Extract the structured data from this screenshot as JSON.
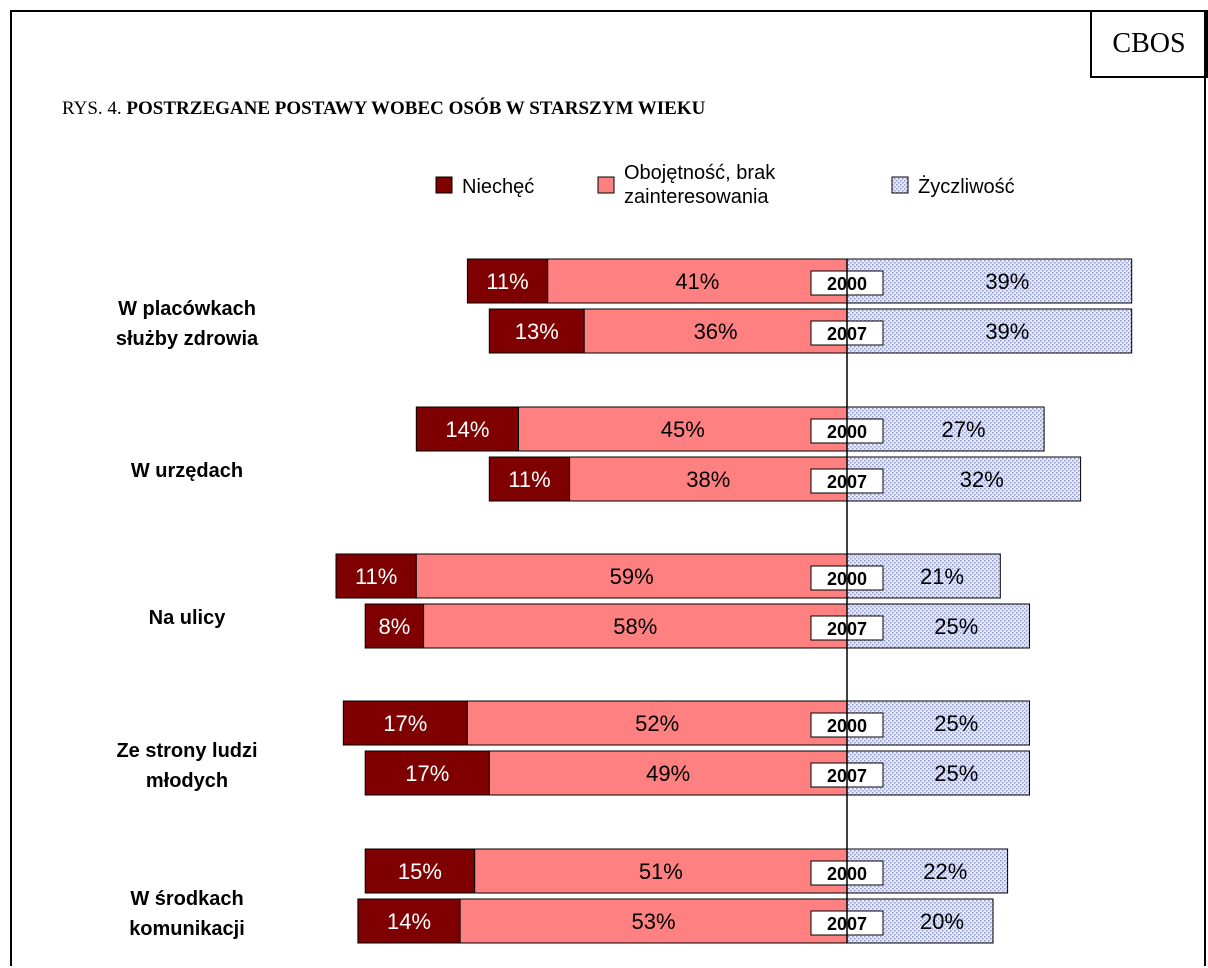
{
  "badge": "CBOS",
  "figure_prefix": "RYS. 4.",
  "figure_title": "POSTRZEGANE POSTAWY WOBEC OSÓB W STARSZYM WIEKU",
  "chart_data": {
    "type": "bar",
    "orientation": "horizontal-diverging",
    "stacked": true,
    "legend": [
      {
        "name": "Niechęć",
        "lines": [
          "Niechęć"
        ],
        "color": "#7f0000",
        "pattern": "solid"
      },
      {
        "name": "Obojętność, brak zainteresowania",
        "lines": [
          "Obojętność, brak",
          "zainteresowania"
        ],
        "color": "#ff8080",
        "pattern": "solid"
      },
      {
        "name": "Życzliwość",
        "lines": [
          "Życzliwość"
        ],
        "color": "#d8dcf0",
        "pattern": "dotted"
      }
    ],
    "legend_position": "top",
    "categories": [
      {
        "label": [
          "W placówkach",
          "służby zdrowia"
        ],
        "rows": [
          {
            "year": "2000",
            "values": [
              11,
              41,
              39
            ]
          },
          {
            "year": "2007",
            "values": [
              13,
              36,
              39
            ]
          }
        ]
      },
      {
        "label": [
          "W urzędach"
        ],
        "rows": [
          {
            "year": "2000",
            "values": [
              14,
              45,
              27
            ]
          },
          {
            "year": "2007",
            "values": [
              11,
              38,
              32
            ]
          }
        ]
      },
      {
        "label": [
          "Na ulicy"
        ],
        "rows": [
          {
            "year": "2000",
            "values": [
              11,
              59,
              21
            ]
          },
          {
            "year": "2007",
            "values": [
              8,
              58,
              25
            ]
          }
        ]
      },
      {
        "label": [
          "Ze strony ludzi",
          "młodych"
        ],
        "rows": [
          {
            "year": "2000",
            "values": [
              17,
              52,
              25
            ]
          },
          {
            "year": "2007",
            "values": [
              17,
              49,
              25
            ]
          }
        ]
      },
      {
        "label": [
          "W środkach",
          "komunikacji"
        ],
        "rows": [
          {
            "year": "2000",
            "values": [
              15,
              51,
              22
            ]
          },
          {
            "year": "2007",
            "values": [
              14,
              53,
              20
            ]
          }
        ]
      }
    ],
    "value_suffix": "%",
    "colors": {
      "dislike": "#7f0000",
      "indifference": "#ff8080",
      "kindness_fill": "#dfe3f5",
      "kindness_dot": "#9aa3d0"
    }
  }
}
